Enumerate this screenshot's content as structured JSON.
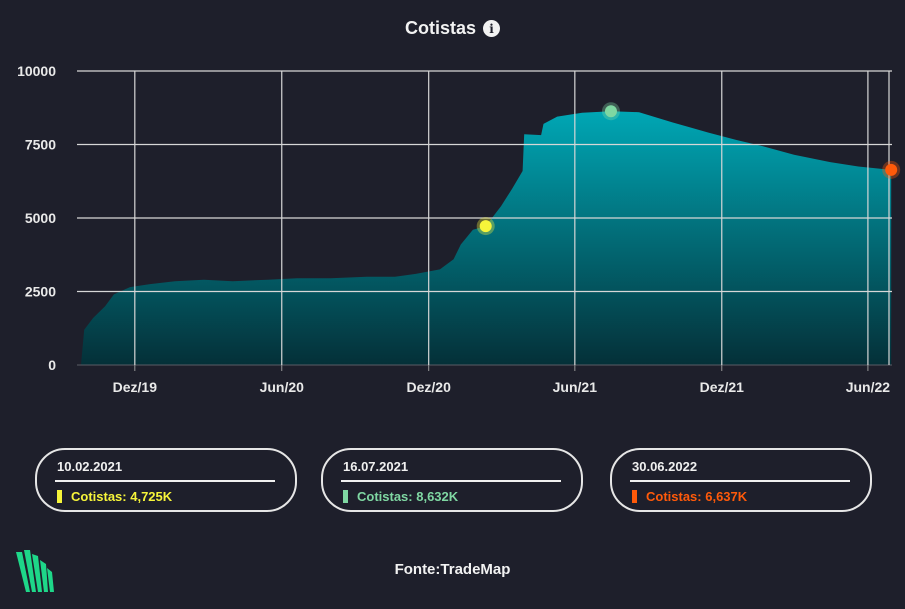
{
  "header": {
    "title": "Cotistas",
    "info_icon": "info-icon"
  },
  "chart_data": {
    "type": "area",
    "title": "Cotistas",
    "xlabel": "",
    "ylabel": "",
    "ylim": [
      0,
      10000
    ],
    "yticks": [
      {
        "value": 0,
        "label": "0"
      },
      {
        "value": 2500,
        "label": "2500"
      },
      {
        "value": 5000,
        "label": "5000"
      },
      {
        "value": 7500,
        "label": "7500"
      },
      {
        "value": 10000,
        "label": "10000"
      }
    ],
    "xlim": [
      "2019-09-20",
      "2022-07-01"
    ],
    "xticks": [
      {
        "date": "2019-12-01",
        "label": "Dez/19"
      },
      {
        "date": "2020-06-01",
        "label": "Jun/20"
      },
      {
        "date": "2020-12-01",
        "label": "Dez/20"
      },
      {
        "date": "2021-06-01",
        "label": "Jun/21"
      },
      {
        "date": "2021-12-01",
        "label": "Dez/21"
      },
      {
        "date": "2022-06-01",
        "label": "Jun/22"
      }
    ],
    "grid": true,
    "fill_colors": [
      "#00a7b5",
      "#043038"
    ],
    "series": [
      {
        "points": [
          [
            "2019-09-25",
            0
          ],
          [
            "2019-09-29",
            1200
          ],
          [
            "2019-10-10",
            1600
          ],
          [
            "2019-10-25",
            2000
          ],
          [
            "2019-11-05",
            2400
          ],
          [
            "2019-11-25",
            2650
          ],
          [
            "2019-12-20",
            2750
          ],
          [
            "2020-01-20",
            2850
          ],
          [
            "2020-02-25",
            2900
          ],
          [
            "2020-04-01",
            2850
          ],
          [
            "2020-05-15",
            2900
          ],
          [
            "2020-06-20",
            2950
          ],
          [
            "2020-08-01",
            2950
          ],
          [
            "2020-09-15",
            3000
          ],
          [
            "2020-10-20",
            3000
          ],
          [
            "2020-11-15",
            3100
          ],
          [
            "2020-12-15",
            3250
          ],
          [
            "2021-01-01",
            3600
          ],
          [
            "2021-01-10",
            4100
          ],
          [
            "2021-01-25",
            4600
          ],
          [
            "2021-02-10",
            4725
          ],
          [
            "2021-03-01",
            5400
          ],
          [
            "2021-03-15",
            6000
          ],
          [
            "2021-03-28",
            6600
          ],
          [
            "2021-03-30",
            7850
          ],
          [
            "2021-04-20",
            7820
          ],
          [
            "2021-04-23",
            8200
          ],
          [
            "2021-05-10",
            8450
          ],
          [
            "2021-06-10",
            8580
          ],
          [
            "2021-07-16",
            8632
          ],
          [
            "2021-08-20",
            8600
          ],
          [
            "2021-10-01",
            8250
          ],
          [
            "2021-11-15",
            7900
          ],
          [
            "2021-12-20",
            7650
          ],
          [
            "2022-01-20",
            7450
          ],
          [
            "2022-03-01",
            7150
          ],
          [
            "2022-04-15",
            6900
          ],
          [
            "2022-05-20",
            6750
          ],
          [
            "2022-06-30",
            6637
          ]
        ]
      }
    ],
    "markers": [
      {
        "date": "2021-02-10",
        "value": 4725,
        "color": "#f6f43a"
      },
      {
        "date": "2021-07-16",
        "value": 8632,
        "color": "#7fd7a2"
      },
      {
        "date": "2022-06-30",
        "value": 6637,
        "color": "#ff5a0a"
      }
    ]
  },
  "cards": [
    {
      "date": "10.02.2021",
      "label": "Cotistas: 4,725K",
      "color": "#f6f43a"
    },
    {
      "date": "16.07.2021",
      "label": "Cotistas: 8,632K",
      "color": "#7fd7a2"
    },
    {
      "date": "30.06.2022",
      "label": "Cotistas: 6,637K",
      "color": "#ff5a0a"
    }
  ],
  "footer": {
    "source": "Fonte:TradeMap",
    "logo_icon": "trademap-logo-icon"
  }
}
